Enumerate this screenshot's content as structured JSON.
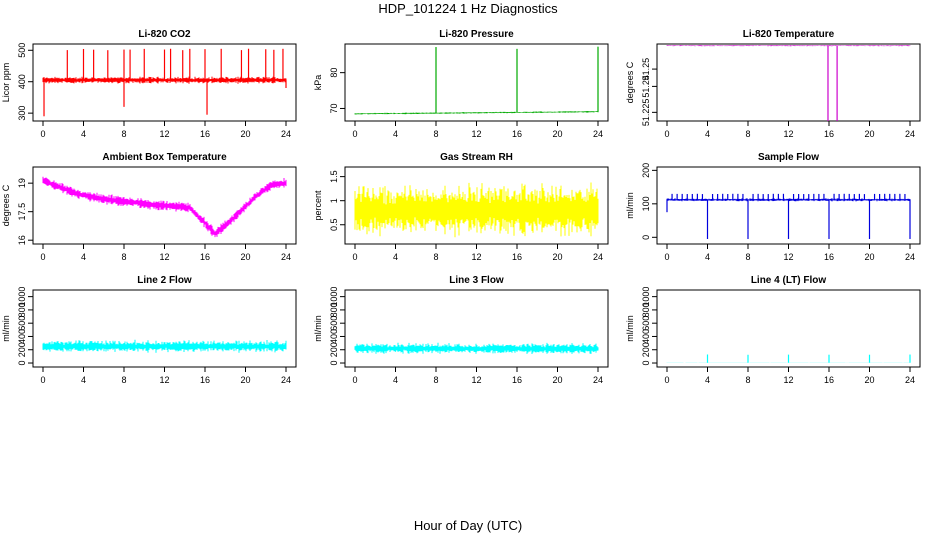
{
  "page": {
    "title": "HDP_101224  1 Hz Diagnostics",
    "xlabel": "Hour of Day (UTC)"
  },
  "chart_data": [
    {
      "type": "line",
      "title": "Li-820 CO2",
      "ylabel": "Licor ppm",
      "color": "#ff0000",
      "xticks": [
        0,
        4,
        8,
        12,
        16,
        20,
        24
      ],
      "xlim": [
        0,
        24
      ],
      "yticks": [
        300,
        400,
        500
      ],
      "ylim": [
        275,
        520
      ],
      "baseline": [
        [
          0,
          405
        ],
        [
          24,
          405
        ]
      ],
      "noise": 12,
      "spike_top": 505,
      "spikes": [
        2.4,
        4,
        5,
        6.4,
        8,
        8.6,
        10,
        12,
        12.6,
        13.8,
        14.5,
        16,
        17.6,
        19.6,
        20.3,
        22,
        22.8,
        23.7
      ],
      "dips": [
        [
          0.1,
          290
        ],
        [
          8,
          320
        ],
        [
          16.2,
          295
        ],
        [
          24,
          380
        ]
      ]
    },
    {
      "type": "line",
      "title": "Li-820 Pressure",
      "ylabel": "kPa",
      "color": "#00aa00",
      "xticks": [
        0,
        4,
        8,
        12,
        16,
        20,
        24
      ],
      "xlim": [
        0,
        24
      ],
      "yticks": [
        70,
        80
      ],
      "ylim": [
        66.5,
        88
      ],
      "baseline": [
        [
          0,
          68.5
        ],
        [
          24,
          69.1
        ]
      ],
      "noise": 0.25,
      "spike_top": 87.5,
      "spikes": [
        8,
        16,
        24
      ],
      "dips": []
    },
    {
      "type": "line",
      "title": "Li-820 Temperature",
      "ylabel": "degrees C",
      "color": "#cc00cc",
      "xticks": [
        0,
        4,
        8,
        12,
        16,
        20,
        24
      ],
      "xlim": [
        0,
        24
      ],
      "yticks": [
        51.225,
        51.24,
        51.25
      ],
      "ylim": [
        51.22,
        51.2645
      ],
      "baseline": [
        [
          0,
          51.2635
        ],
        [
          24,
          51.2635
        ]
      ],
      "noise": 0.0003,
      "spike_top": null,
      "spikes": [],
      "dips": [
        [
          15.9,
          51.22
        ],
        [
          16.8,
          51.22
        ]
      ]
    },
    {
      "type": "line",
      "title": "Ambient Box Temperature",
      "ylabel": "degrees C",
      "color": "#ff00ff",
      "xticks": [
        0,
        4,
        8,
        12,
        16,
        20,
        24
      ],
      "xlim": [
        0,
        24
      ],
      "yticks": [
        16,
        17.5,
        19
      ],
      "ylim": [
        15.8,
        19.85
      ],
      "baseline": [
        [
          0,
          19.15
        ],
        [
          3,
          18.5
        ],
        [
          6,
          18.15
        ],
        [
          9,
          18.0
        ],
        [
          11,
          17.85
        ],
        [
          13,
          17.8
        ],
        [
          14.5,
          17.7
        ],
        [
          16,
          16.9
        ],
        [
          17,
          16.35
        ],
        [
          18.5,
          17.0
        ],
        [
          21,
          18.3
        ],
        [
          22.5,
          18.9
        ],
        [
          24,
          19.0
        ]
      ],
      "noise": 0.3,
      "spike_top": null,
      "spikes": [],
      "dips": []
    },
    {
      "type": "line",
      "title": "Gas Stream RH",
      "ylabel": "percent",
      "color": "#ffff00",
      "xticks": [
        0,
        4,
        8,
        12,
        16,
        20,
        24
      ],
      "xlim": [
        0,
        24
      ],
      "yticks": [
        0.5,
        1.0,
        1.5
      ],
      "ylim": [
        0.1,
        1.7
      ],
      "baseline": [
        [
          0,
          0.8
        ],
        [
          24,
          0.8
        ]
      ],
      "noise": 0.6,
      "spike_top": null,
      "spikes": [],
      "dips": []
    },
    {
      "type": "line",
      "title": "Sample Flow",
      "ylabel": "ml/min",
      "color": "#0000dd",
      "xticks": [
        0,
        4,
        8,
        12,
        16,
        20,
        24
      ],
      "xlim": [
        0,
        24
      ],
      "yticks": [
        0,
        100,
        200
      ],
      "ylim": [
        -20,
        210
      ],
      "baseline": [
        [
          0,
          112
        ],
        [
          24,
          112
        ]
      ],
      "noise": 5,
      "spike_top": 130,
      "spikes": [
        0.5,
        1,
        1.5,
        2,
        2.5,
        3,
        3.5,
        4.5,
        5,
        5.5,
        6,
        6.5,
        7,
        7.5,
        8.5,
        9,
        9.5,
        10,
        10.5,
        11,
        11.5,
        12.5,
        13,
        13.5,
        14,
        14.5,
        15,
        15.5,
        16.5,
        17,
        17.5,
        18,
        18.5,
        19,
        19.5,
        20.5,
        21,
        21.5,
        22,
        22.5,
        23,
        23.5
      ],
      "dips": [
        [
          0,
          75
        ],
        [
          4,
          -5
        ],
        [
          8,
          -5
        ],
        [
          12,
          -5
        ],
        [
          16,
          -5
        ],
        [
          20,
          -5
        ],
        [
          24,
          -5
        ]
      ]
    },
    {
      "type": "line",
      "title": "Line 2 Flow",
      "ylabel": "ml/min",
      "color": "#00ffff",
      "xticks": [
        0,
        4,
        8,
        12,
        16,
        20,
        24
      ],
      "xlim": [
        0,
        24
      ],
      "yticks": [
        0,
        200,
        400,
        600,
        800,
        1000
      ],
      "ylim": [
        -60,
        1100
      ],
      "baseline": [
        [
          0,
          250
        ],
        [
          24,
          250
        ]
      ],
      "noise": 100,
      "spike_top": null,
      "spikes": [],
      "dips": [
        [
          4,
          200
        ],
        [
          8,
          200
        ],
        [
          12,
          200
        ],
        [
          16,
          200
        ],
        [
          20,
          200
        ]
      ]
    },
    {
      "type": "line",
      "title": "Line 3 Flow",
      "ylabel": "ml/min",
      "color": "#00ffff",
      "xticks": [
        0,
        4,
        8,
        12,
        16,
        20,
        24
      ],
      "xlim": [
        0,
        24
      ],
      "yticks": [
        0,
        200,
        400,
        600,
        800,
        1000
      ],
      "ylim": [
        -60,
        1100
      ],
      "baseline": [
        [
          0,
          220
        ],
        [
          24,
          215
        ]
      ],
      "noise": 90,
      "spike_top": null,
      "spikes": [],
      "dips": [
        [
          4,
          170
        ],
        [
          8,
          170
        ],
        [
          12,
          170
        ],
        [
          16,
          170
        ],
        [
          20,
          170
        ]
      ]
    },
    {
      "type": "line",
      "title": "Line 4 (LT) Flow",
      "ylabel": "ml/min",
      "color": "#00ffff",
      "xticks": [
        0,
        4,
        8,
        12,
        16,
        20,
        24
      ],
      "xlim": [
        0,
        24
      ],
      "yticks": [
        0,
        200,
        400,
        600,
        800,
        1000
      ],
      "ylim": [
        -60,
        1100
      ],
      "baseline": [
        [
          0,
          5
        ],
        [
          24,
          5
        ]
      ],
      "noise": 2,
      "spike_top": 130,
      "spikes": [
        4,
        8,
        12,
        16,
        20,
        24
      ],
      "dips": []
    }
  ]
}
